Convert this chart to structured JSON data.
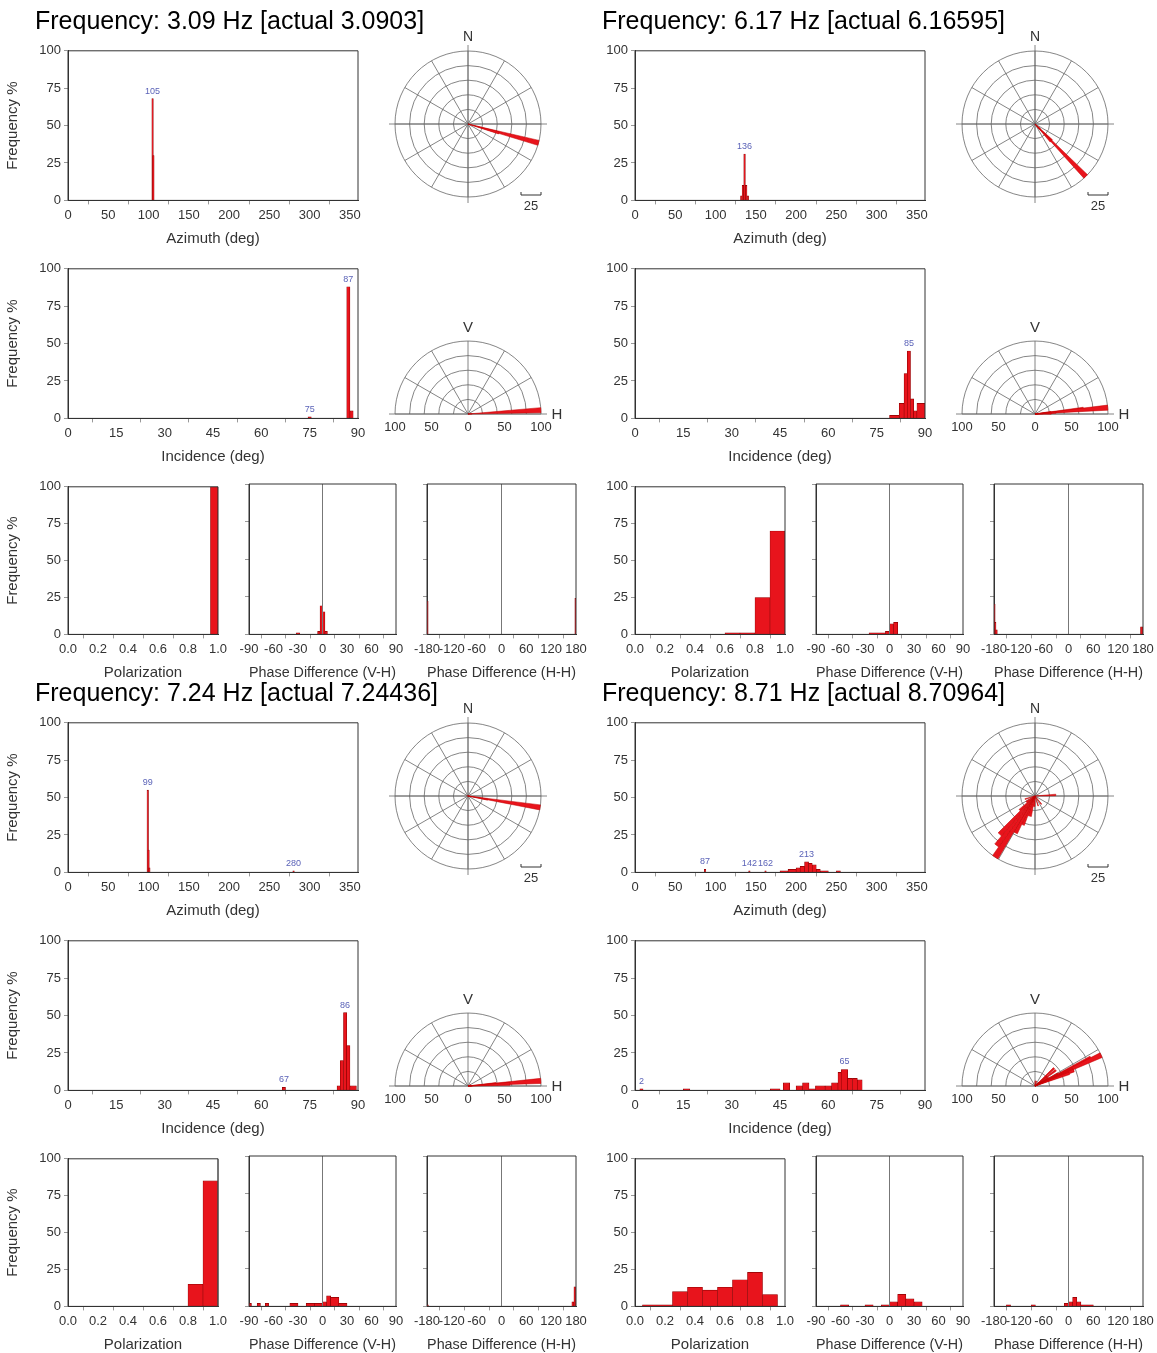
{
  "chart_data": [
    {
      "type": "histogram",
      "title": "Frequency: 3.09 Hz [actual 3.0903]",
      "xlabel": "Azimuth (deg)",
      "ylabel": "Frequency %",
      "bins": [
        104.5,
        105.5,
        106.5
      ],
      "values": [
        68,
        30
      ],
      "color": "#e8141c",
      "xlim": [
        0,
        360
      ],
      "xticks": [
        0,
        50,
        100,
        150,
        200,
        250,
        300,
        350
      ],
      "ylim": [
        0,
        100
      ],
      "yticks": [
        0,
        25,
        50,
        75,
        100
      ],
      "annotations": [
        {
          "text": "105",
          "x": 105,
          "y": 68
        }
      ]
    },
    {
      "type": "other",
      "annotations": [
        "N",
        "25"
      ]
    },
    {
      "type": "histogram",
      "xlabel": "Incidence (deg)",
      "ylabel": "Frequency %",
      "bins": [
        74.5,
        75.5,
        86.5,
        87.5,
        88.5
      ],
      "values": [
        1,
        0,
        88,
        5
      ],
      "color": "#e8141c",
      "xlim": [
        0,
        90
      ],
      "xticks": [
        0,
        15,
        30,
        45,
        60,
        75,
        90
      ],
      "ylim": [
        0,
        100
      ],
      "yticks": [
        0,
        25,
        50,
        75,
        100
      ],
      "annotations": [
        {
          "text": "87",
          "x": 87,
          "y": 88
        },
        {
          "text": "75",
          "x": 75,
          "y": 1
        }
      ]
    },
    {
      "type": "other",
      "annotations": [
        "V",
        "H",
        "100",
        "50",
        "0",
        "50",
        "100"
      ]
    },
    {
      "type": "histogram",
      "xlabel": "Polarization",
      "ylabel": "Frequency %",
      "bins": [
        0.95,
        1.0
      ],
      "values": [
        100
      ],
      "color": "#e8141c",
      "xlim": [
        0,
        1
      ],
      "xticks": [
        {
          "value": 0,
          "label": "0.0"
        },
        {
          "value": 0.2,
          "label": "0.2"
        },
        {
          "value": 0.4,
          "label": "0.4"
        },
        {
          "value": 0.6,
          "label": "0.6"
        },
        {
          "value": 0.8,
          "label": "0.8"
        },
        {
          "value": 1,
          "label": "1.0"
        }
      ],
      "ylim": [
        0,
        100
      ],
      "yticks": [
        0,
        25,
        50,
        75,
        100
      ]
    },
    {
      "type": "histogram",
      "xlabel": "Phase Difference (V-H)",
      "bins": [
        -32,
        -28,
        -6,
        -3,
        0,
        3,
        6
      ],
      "values": [
        1,
        0,
        2,
        19,
        15,
        2
      ],
      "color": "#e8141c",
      "xlim": [
        -90,
        90
      ],
      "xticks": [
        -90,
        -60,
        -30,
        0,
        30,
        60,
        90
      ],
      "ylim": [
        0,
        100
      ],
      "yticks": [
        0,
        25,
        50,
        75,
        100
      ],
      "tick_labels": "x",
      "ref_lines": [
        {
          "axis": "x",
          "value": 0,
          "color": "#777777"
        }
      ]
    },
    {
      "type": "histogram",
      "xlabel": "Phase Difference (H-H)",
      "bins": [
        -180,
        -178,
        178,
        180
      ],
      "values": [
        22,
        0,
        24
      ],
      "color": "#e8141c",
      "xlim": [
        -180,
        180
      ],
      "xticks": [
        -180,
        -120,
        -60,
        0,
        60,
        120,
        180
      ],
      "ylim": [
        0,
        100
      ],
      "yticks": [
        0,
        25,
        50,
        75,
        100
      ],
      "tick_labels": "x",
      "ref_lines": [
        {
          "axis": "x",
          "value": 0,
          "color": "#777777"
        }
      ]
    },
    {
      "type": "histogram",
      "title": "Frequency: 6.17 Hz [actual 6.16595]",
      "xlabel": "Azimuth (deg)",
      "bins": [
        131,
        133,
        135,
        137,
        139,
        141
      ],
      "values": [
        3,
        10,
        31,
        10,
        3
      ],
      "color": "#e8141c",
      "xlim": [
        0,
        360
      ],
      "xticks": [
        0,
        50,
        100,
        150,
        200,
        250,
        300,
        350
      ],
      "ylim": [
        0,
        100
      ],
      "yticks": [
        0,
        25,
        50,
        75,
        100
      ],
      "annotations": [
        {
          "text": "136",
          "x": 136,
          "y": 31
        }
      ]
    },
    {
      "type": "other",
      "annotations": [
        "N",
        "25"
      ]
    },
    {
      "type": "histogram",
      "xlabel": "Incidence (deg)",
      "bins": [
        79,
        82,
        83.5,
        84.5,
        85.5,
        86.5,
        87.5,
        90
      ],
      "values": [
        2,
        10,
        30,
        45,
        13,
        5,
        10
      ],
      "color": "#e8141c",
      "xlim": [
        0,
        90
      ],
      "xticks": [
        0,
        15,
        30,
        45,
        60,
        75,
        90
      ],
      "ylim": [
        0,
        100
      ],
      "yticks": [
        0,
        25,
        50,
        75,
        100
      ],
      "annotations": [
        {
          "text": "85",
          "x": 85,
          "y": 45
        }
      ]
    },
    {
      "type": "other",
      "annotations": [
        "V",
        "H",
        "100",
        "50",
        "0",
        "50",
        "100"
      ]
    },
    {
      "type": "histogram",
      "xlabel": "Polarization",
      "bins": [
        0.6,
        0.7,
        0.8,
        0.9,
        1.0
      ],
      "values": [
        1,
        1,
        25,
        70
      ],
      "color": "#e8141c",
      "xlim": [
        0,
        1
      ],
      "xticks": [
        {
          "value": 0,
          "label": "0.0"
        },
        {
          "value": 0.2,
          "label": "0.2"
        },
        {
          "value": 0.4,
          "label": "0.4"
        },
        {
          "value": 0.6,
          "label": "0.6"
        },
        {
          "value": 0.8,
          "label": "0.8"
        },
        {
          "value": 1,
          "label": "1.0"
        }
      ],
      "ylim": [
        0,
        100
      ],
      "yticks": [
        0,
        25,
        50,
        75,
        100
      ]
    },
    {
      "type": "histogram",
      "xlabel": "Phase Difference (V-H)",
      "bins": [
        -25,
        -5,
        0,
        5,
        10
      ],
      "values": [
        1,
        2,
        7,
        8
      ],
      "color": "#e8141c",
      "xlim": [
        -90,
        90
      ],
      "xticks": [
        -90,
        -60,
        -30,
        0,
        30,
        60,
        90
      ],
      "ylim": [
        0,
        100
      ],
      "yticks": [
        0,
        25,
        50,
        75,
        100
      ],
      "tick_labels": "x",
      "ref_lines": [
        {
          "axis": "x",
          "value": 0,
          "color": "#777777"
        }
      ]
    },
    {
      "type": "histogram",
      "xlabel": "Phase Difference (H-H)",
      "bins": [
        -180,
        -178,
        -176,
        -172,
        174,
        180
      ],
      "values": [
        20,
        8,
        3,
        0,
        5
      ],
      "color": "#e8141c",
      "xlim": [
        -180,
        180
      ],
      "xticks": [
        -180,
        -120,
        -60,
        0,
        60,
        120,
        180
      ],
      "ylim": [
        0,
        100
      ],
      "yticks": [
        0,
        25,
        50,
        75,
        100
      ],
      "tick_labels": "x",
      "ref_lines": [
        {
          "axis": "x",
          "value": 0,
          "color": "#777777"
        }
      ]
    },
    {
      "type": "histogram",
      "title": "Frequency: 7.24 Hz [actual 7.24436]",
      "xlabel": "Azimuth (deg)",
      "ylabel": "Frequency %",
      "bins": [
        98.5,
        99.5,
        100.5,
        101.5,
        279.5,
        280.5
      ],
      "values": [
        55,
        15,
        3,
        0,
        1
      ],
      "color": "#e8141c",
      "xlim": [
        0,
        360
      ],
      "xticks": [
        0,
        50,
        100,
        150,
        200,
        250,
        300,
        350
      ],
      "ylim": [
        0,
        100
      ],
      "yticks": [
        0,
        25,
        50,
        75,
        100
      ],
      "annotations": [
        {
          "text": "99",
          "x": 99,
          "y": 55
        },
        {
          "text": "280",
          "x": 280,
          "y": 1
        }
      ]
    },
    {
      "type": "other",
      "annotations": [
        "N",
        "25"
      ]
    },
    {
      "type": "histogram",
      "xlabel": "Incidence (deg)",
      "ylabel": "Frequency %",
      "bins": [
        66.5,
        67.5,
        83.5,
        84.5,
        85.5,
        86.5,
        87.5,
        89.5
      ],
      "values": [
        2,
        0,
        3,
        20,
        52,
        30,
        3
      ],
      "color": "#e8141c",
      "xlim": [
        0,
        90
      ],
      "xticks": [
        0,
        15,
        30,
        45,
        60,
        75,
        90
      ],
      "ylim": [
        0,
        100
      ],
      "yticks": [
        0,
        25,
        50,
        75,
        100
      ],
      "annotations": [
        {
          "text": "86",
          "x": 86,
          "y": 52
        },
        {
          "text": "67",
          "x": 67,
          "y": 2
        }
      ]
    },
    {
      "type": "other",
      "annotations": [
        "V",
        "H",
        "100",
        "50",
        "0",
        "50",
        "100"
      ]
    },
    {
      "type": "histogram",
      "xlabel": "Polarization",
      "ylabel": "Frequency %",
      "bins": [
        0.8,
        0.9,
        1.0
      ],
      "values": [
        15,
        85
      ],
      "color": "#e8141c",
      "xlim": [
        0,
        1
      ],
      "xticks": [
        {
          "value": 0,
          "label": "0.0"
        },
        {
          "value": 0.2,
          "label": "0.2"
        },
        {
          "value": 0.4,
          "label": "0.4"
        },
        {
          "value": 0.6,
          "label": "0.6"
        },
        {
          "value": 0.8,
          "label": "0.8"
        },
        {
          "value": 1,
          "label": "1.0"
        }
      ],
      "ylim": [
        0,
        100
      ],
      "yticks": [
        0,
        25,
        50,
        75,
        100
      ],
      "ref_lines": [
        {
          "axis": "x",
          "value": 1,
          "color": "#777777"
        }
      ]
    },
    {
      "type": "histogram",
      "xlabel": "Phase Difference (V-H)",
      "bins": [
        -90,
        -87,
        -80,
        -76,
        -70,
        -66,
        -40,
        -30,
        -20,
        -10,
        0,
        5,
        10,
        20,
        30
      ],
      "values": [
        2,
        0,
        2,
        0,
        2,
        0,
        2,
        0,
        2,
        2,
        3,
        7,
        6,
        2
      ],
      "color": "#e8141c",
      "xlim": [
        -90,
        90
      ],
      "xticks": [
        -90,
        -60,
        -30,
        0,
        30,
        60,
        90
      ],
      "ylim": [
        0,
        100
      ],
      "yticks": [
        0,
        25,
        50,
        75,
        100
      ],
      "tick_labels": "x",
      "ref_lines": [
        {
          "axis": "x",
          "value": 0,
          "color": "#777777"
        }
      ]
    },
    {
      "type": "histogram",
      "xlabel": "Phase Difference (H-H)",
      "bins": [
        -180,
        -177,
        170,
        175,
        180
      ],
      "values": [
        1,
        0,
        3,
        13
      ],
      "color": "#e8141c",
      "xlim": [
        -180,
        180
      ],
      "xticks": [
        -180,
        -120,
        -60,
        0,
        60,
        120,
        180
      ],
      "ylim": [
        0,
        100
      ],
      "yticks": [
        0,
        25,
        50,
        75,
        100
      ],
      "tick_labels": "x",
      "ref_lines": [
        {
          "axis": "x",
          "value": 0,
          "color": "#777777"
        }
      ]
    },
    {
      "type": "histogram",
      "title": "Frequency: 8.71 Hz [actual 8.70964]",
      "xlabel": "Azimuth (deg)",
      "bins": [
        86.5,
        87.5,
        141.5,
        142.5,
        161.5,
        162.5,
        180,
        190,
        200,
        205,
        210.5,
        215.5,
        220,
        225,
        230,
        240,
        250,
        255
      ],
      "values": [
        2,
        0,
        1,
        0,
        1,
        0,
        1,
        2,
        3,
        4,
        7,
        6,
        5,
        2,
        1,
        0,
        1
      ],
      "color": "#e8141c",
      "xlim": [
        0,
        360
      ],
      "xticks": [
        0,
        50,
        100,
        150,
        200,
        250,
        300,
        350
      ],
      "ylim": [
        0,
        100
      ],
      "yticks": [
        0,
        25,
        50,
        75,
        100
      ],
      "annotations": [
        {
          "text": "87",
          "x": 87,
          "y": 2
        },
        {
          "text": "142",
          "x": 142,
          "y": 1
        },
        {
          "text": "162",
          "x": 162,
          "y": 1
        },
        {
          "text": "213",
          "x": 213,
          "y": 7
        }
      ]
    },
    {
      "type": "other",
      "annotations": [
        "N",
        "25"
      ]
    },
    {
      "type": "histogram",
      "xlabel": "Incidence (deg)",
      "bins": [
        1.5,
        2.5,
        15,
        17,
        42,
        45,
        46,
        48,
        50,
        52,
        54,
        56,
        59,
        61,
        63,
        64,
        66,
        67.5,
        69,
        70.5
      ],
      "values": [
        1,
        0,
        1,
        0,
        1,
        0,
        5,
        0,
        3,
        5,
        1,
        3,
        3,
        5,
        12,
        14,
        8,
        8,
        7
      ],
      "color": "#e8141c",
      "xlim": [
        0,
        90
      ],
      "xticks": [
        0,
        15,
        30,
        45,
        60,
        75,
        90
      ],
      "ylim": [
        0,
        100
      ],
      "yticks": [
        0,
        25,
        50,
        75,
        100
      ],
      "annotations": [
        {
          "text": "2",
          "x": 2,
          "y": 1
        },
        {
          "text": "65",
          "x": 65,
          "y": 14
        }
      ]
    },
    {
      "type": "other",
      "annotations": [
        "V",
        "H",
        "100",
        "50",
        "0",
        "50",
        "100"
      ]
    },
    {
      "type": "histogram",
      "xlabel": "Polarization",
      "bins": [
        0.05,
        0.25,
        0.35,
        0.45,
        0.55,
        0.65,
        0.75,
        0.85,
        0.95
      ],
      "values": [
        1,
        10,
        13,
        11,
        13,
        18,
        23,
        8
      ],
      "color": "#e8141c",
      "xlim": [
        0,
        1
      ],
      "xticks": [
        {
          "value": 0,
          "label": "0.0"
        },
        {
          "value": 0.2,
          "label": "0.2"
        },
        {
          "value": 0.4,
          "label": "0.4"
        },
        {
          "value": 0.6,
          "label": "0.6"
        },
        {
          "value": 0.8,
          "label": "0.8"
        },
        {
          "value": 1,
          "label": "1.0"
        }
      ],
      "ylim": [
        0,
        100
      ],
      "yticks": [
        0,
        25,
        50,
        75,
        100
      ]
    },
    {
      "type": "histogram",
      "xlabel": "Phase Difference (V-H)",
      "bins": [
        -60,
        -50,
        -30,
        -20,
        -10,
        0,
        10,
        20,
        30,
        40
      ],
      "values": [
        1,
        0,
        1,
        0,
        1,
        3,
        8,
        5,
        3
      ],
      "color": "#e8141c",
      "xlim": [
        -90,
        90
      ],
      "xticks": [
        -90,
        -60,
        -30,
        0,
        30,
        60,
        90
      ],
      "ylim": [
        0,
        100
      ],
      "yticks": [
        0,
        25,
        50,
        75,
        100
      ],
      "tick_labels": "x",
      "ref_lines": [
        {
          "axis": "x",
          "value": 0,
          "color": "#777777"
        }
      ]
    },
    {
      "type": "histogram",
      "xlabel": "Phase Difference (H-H)",
      "bins": [
        -150,
        -140,
        -90,
        -80,
        -10,
        0,
        10,
        20,
        30,
        60
      ],
      "values": [
        1,
        0,
        1,
        0,
        2,
        3,
        6,
        3,
        1
      ],
      "color": "#e8141c",
      "xlim": [
        -180,
        180
      ],
      "xticks": [
        -180,
        -120,
        -60,
        0,
        60,
        120,
        180
      ],
      "ylim": [
        0,
        100
      ],
      "yticks": [
        0,
        25,
        50,
        75,
        100
      ],
      "tick_labels": "x",
      "ref_lines": [
        {
          "axis": "x",
          "value": 0,
          "color": "#777777"
        }
      ]
    }
  ]
}
